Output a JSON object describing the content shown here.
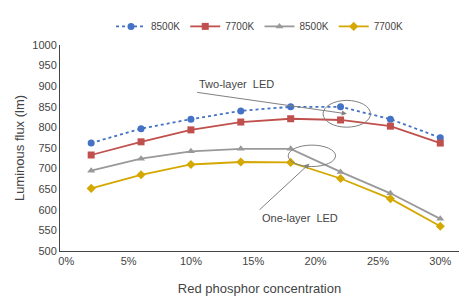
{
  "chart_data": {
    "type": "line",
    "x": [
      0.02,
      0.06,
      0.1,
      0.14,
      0.18,
      0.22,
      0.26,
      0.3
    ],
    "series": [
      {
        "name": "8500K",
        "color": "#4472C4",
        "marker": "circle",
        "line_style": "dotted",
        "values": [
          762,
          797,
          820,
          840,
          850,
          850,
          820,
          775
        ]
      },
      {
        "name": "7700K",
        "color": "#C0504D",
        "marker": "square",
        "line_style": "solid",
        "values": [
          733,
          765,
          794,
          813,
          821,
          818,
          803,
          762
        ]
      },
      {
        "name": "8500K",
        "color": "#999999",
        "marker": "triangle-up",
        "line_style": "solid",
        "values": [
          695,
          724,
          742,
          748,
          748,
          692,
          640,
          578
        ]
      },
      {
        "name": "7700K",
        "color": "#D4A800",
        "marker": "diamond",
        "line_style": "solid",
        "values": [
          652,
          685,
          710,
          716,
          715,
          676,
          627,
          560
        ]
      }
    ],
    "xlabel": "Red phosphor concentration",
    "ylabel": "Luminous flux (lm)",
    "xlim": [
      -0.005,
      0.315
    ],
    "xticks": [
      {
        "value": 0.0,
        "label": "0%"
      },
      {
        "value": 0.05,
        "label": "5%"
      },
      {
        "value": 0.1,
        "label": "10%"
      },
      {
        "value": 0.15,
        "label": "15%"
      },
      {
        "value": 0.2,
        "label": "20%"
      },
      {
        "value": 0.25,
        "label": "25%"
      },
      {
        "value": 0.3,
        "label": "30%"
      }
    ],
    "ylim": [
      500,
      1000
    ],
    "yticks": [
      500,
      550,
      600,
      650,
      700,
      750,
      800,
      850,
      900,
      950,
      1000
    ],
    "annotations": [
      "Two-layer  LED",
      "One-layer  LED"
    ],
    "grid": false,
    "legend": "top"
  }
}
